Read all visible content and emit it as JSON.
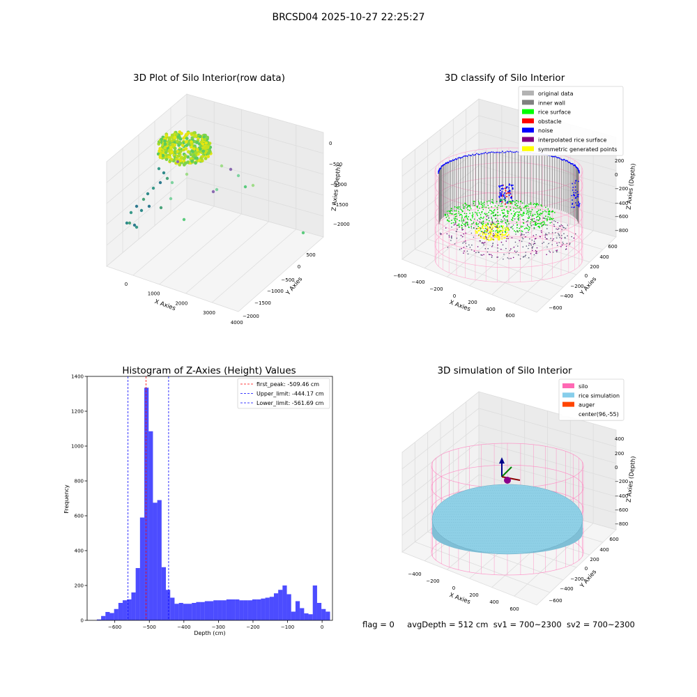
{
  "suptitle": "BRCSD04 2025-10-27 22:25:27",
  "panels": {
    "raw": {
      "title": "3D Plot of Silo Interior(row data)",
      "xlabel": "X Axies",
      "ylabel": "Y Axies",
      "zlabel": "Z Axies (Depth)",
      "xticks": [
        "0",
        "1000",
        "2000",
        "3000",
        "4000"
      ],
      "yticks": [
        "500",
        "0",
        "−500",
        "−1000",
        "−1500",
        "−2000"
      ],
      "zticks": [
        "0",
        "−500",
        "−1000",
        "−1500",
        "−2000"
      ]
    },
    "classify": {
      "title": "3D classify of Silo Interior",
      "xlabel": "X Axies",
      "ylabel": "Y Axies",
      "zlabel": "Z Axies (Depth)",
      "xticks": [
        "−600",
        "−400",
        "−200",
        "0",
        "200",
        "400",
        "600"
      ],
      "yticks": [
        "600",
        "400",
        "200",
        "0",
        "−200",
        "−400",
        "−600"
      ],
      "zticks": [
        "200",
        "0",
        "−200",
        "−400",
        "−600",
        "−800"
      ],
      "legend": [
        {
          "label": "original data",
          "color": "#b3b3b3"
        },
        {
          "label": "inner wall",
          "color": "#808080"
        },
        {
          "label": "rice surface",
          "color": "#00ff00"
        },
        {
          "label": "obstacle",
          "color": "#ff0000"
        },
        {
          "label": "noise",
          "color": "#0000ff"
        },
        {
          "label": "interpolated rice surface",
          "color": "#800080"
        },
        {
          "label": "symmetric generated points",
          "color": "#ffff00"
        }
      ]
    },
    "simulation": {
      "title": "3D simulation of Silo Interior",
      "xlabel": "X Axies",
      "ylabel": "Y Axies",
      "zlabel": "Z Axies (Depth)",
      "xticks": [
        "−400",
        "−200",
        "0",
        "200",
        "400",
        "600"
      ],
      "yticks": [
        "600",
        "400",
        "200",
        "0",
        "−200",
        "−400",
        "−600"
      ],
      "zticks": [
        "400",
        "200",
        "0",
        "−200",
        "−400",
        "−600",
        "−800"
      ],
      "legend": [
        {
          "label": "silo",
          "color": "#ff69b4"
        },
        {
          "label": "rice simulation",
          "color": "#87ceeb"
        },
        {
          "label": "auger",
          "color": "#ff4500"
        },
        {
          "label": "center(96,-55)",
          "color": "#ffffff"
        }
      ]
    }
  },
  "footer": {
    "flag": "flag = 0",
    "avg_depth": "avgDepth = 512 cm",
    "sv1": "sv1 = 700~2300",
    "sv2": "sv2 = 700~2300"
  },
  "chart_data": [
    {
      "type": "bar",
      "title": "Histogram of Z-Axies (Height) Values",
      "xlabel": "Depth (cm)",
      "ylabel": "Frequency",
      "xlim": [
        -680,
        30
      ],
      "ylim": [
        0,
        1400
      ],
      "xticks": [
        -600,
        -500,
        -400,
        -300,
        -200,
        -100,
        0
      ],
      "yticks": [
        0,
        200,
        400,
        600,
        800,
        1000,
        1200,
        1400
      ],
      "bin_start": -652,
      "bin_width": 12.5,
      "color": "#0000ff",
      "values": [
        5,
        25,
        48,
        42,
        65,
        100,
        115,
        120,
        160,
        300,
        590,
        1335,
        1085,
        675,
        690,
        305,
        175,
        130,
        95,
        100,
        95,
        95,
        100,
        105,
        105,
        110,
        110,
        115,
        115,
        115,
        120,
        120,
        120,
        115,
        115,
        115,
        120,
        120,
        125,
        130,
        135,
        155,
        175,
        200,
        150,
        50,
        110,
        70,
        40,
        35,
        200,
        100,
        65,
        50
      ],
      "lines": [
        {
          "label": "first_peak: -509.46 cm",
          "x": -509.46,
          "color": "#ff0000"
        },
        {
          "label": "Upper_limit: -444.17 cm",
          "x": -444.17,
          "color": "#0000ff"
        },
        {
          "label": "Lower_limit: -561.69 cm",
          "x": -561.69,
          "color": "#0000ff"
        }
      ],
      "legend_position": "top-right"
    }
  ]
}
